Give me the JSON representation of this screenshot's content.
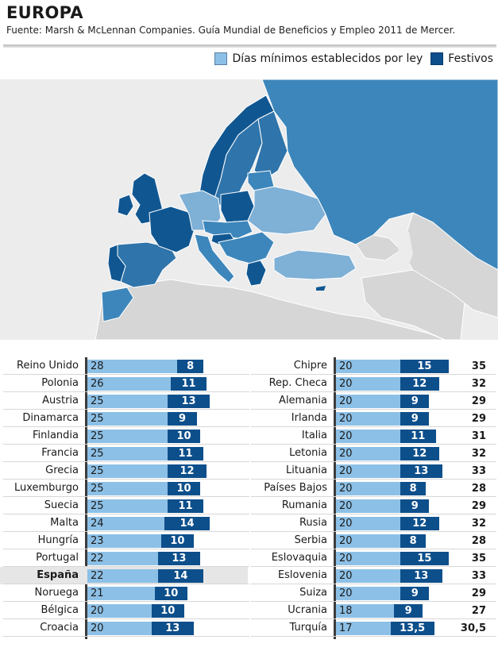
{
  "header": {
    "title": "EUROPA",
    "source": "Fuente: Marsh & McLennan Companies. Guía Mundial de Beneficios y Empleo 2011 de Mercer."
  },
  "legend": {
    "min_label": "Días mínimos establecidos por ley",
    "fest_label": "Festivos"
  },
  "colors": {
    "min": "#8dc0e6",
    "fest": "#0d4f8b",
    "highlight": "#e6e6e6",
    "map_light": "#7fb0d6",
    "map_mid": "#3d86bb",
    "map_dark": "#105792",
    "map_gray": "#d6d6d6"
  },
  "chart_data": {
    "type": "bar",
    "stacked": true,
    "orientation": "horizontal",
    "series_names": [
      "Días mínimos establecidos por ley",
      "Festivos"
    ],
    "highlight": "España",
    "left": [
      {
        "country": "Reino Unido",
        "min": 28,
        "fest": 8
      },
      {
        "country": "Polonia",
        "min": 26,
        "fest": 11
      },
      {
        "country": "Austria",
        "min": 25,
        "fest": 13
      },
      {
        "country": "Dinamarca",
        "min": 25,
        "fest": 9
      },
      {
        "country": "Finlandia",
        "min": 25,
        "fest": 10
      },
      {
        "country": "Francia",
        "min": 25,
        "fest": 11
      },
      {
        "country": "Grecia",
        "min": 25,
        "fest": 12
      },
      {
        "country": "Luxemburgo",
        "min": 25,
        "fest": 10
      },
      {
        "country": "Suecia",
        "min": 25,
        "fest": 11
      },
      {
        "country": "Malta",
        "min": 24,
        "fest": 14
      },
      {
        "country": "Hungría",
        "min": 23,
        "fest": 10
      },
      {
        "country": "Portugal",
        "min": 22,
        "fest": 13
      },
      {
        "country": "España",
        "min": 22,
        "fest": 14
      },
      {
        "country": "Noruega",
        "min": 21,
        "fest": 10
      },
      {
        "country": "Bélgica",
        "min": 20,
        "fest": 10
      },
      {
        "country": "Croacia",
        "min": 20,
        "fest": 13
      }
    ],
    "right": [
      {
        "country": "Chipre",
        "min": 20,
        "fest": 15,
        "total": "35"
      },
      {
        "country": "Rep. Checa",
        "min": 20,
        "fest": 12,
        "total": "32"
      },
      {
        "country": "Alemania",
        "min": 20,
        "fest": 9,
        "total": "29"
      },
      {
        "country": "Irlanda",
        "min": 20,
        "fest": 9,
        "total": "29"
      },
      {
        "country": "Italia",
        "min": 20,
        "fest": 11,
        "total": "31"
      },
      {
        "country": "Letonia",
        "min": 20,
        "fest": 12,
        "total": "32"
      },
      {
        "country": "Lituania",
        "min": 20,
        "fest": 13,
        "total": "33"
      },
      {
        "country": "Países Bajos",
        "min": 20,
        "fest": 8,
        "total": "28"
      },
      {
        "country": "Rumania",
        "min": 20,
        "fest": 9,
        "total": "29"
      },
      {
        "country": "Rusia",
        "min": 20,
        "fest": 12,
        "total": "32"
      },
      {
        "country": "Serbia",
        "min": 20,
        "fest": 8,
        "total": "28"
      },
      {
        "country": "Eslovaquia",
        "min": 20,
        "fest": 15,
        "total": "35"
      },
      {
        "country": "Eslovenia",
        "min": 20,
        "fest": 13,
        "total": "33"
      },
      {
        "country": "Suiza",
        "min": 20,
        "fest": 9,
        "total": "29"
      },
      {
        "country": "Ucrania",
        "min": 18,
        "fest": 9,
        "total": "27"
      },
      {
        "country": "Turquía",
        "min": 17,
        "fest": "13,5",
        "total": "30,5"
      }
    ]
  }
}
